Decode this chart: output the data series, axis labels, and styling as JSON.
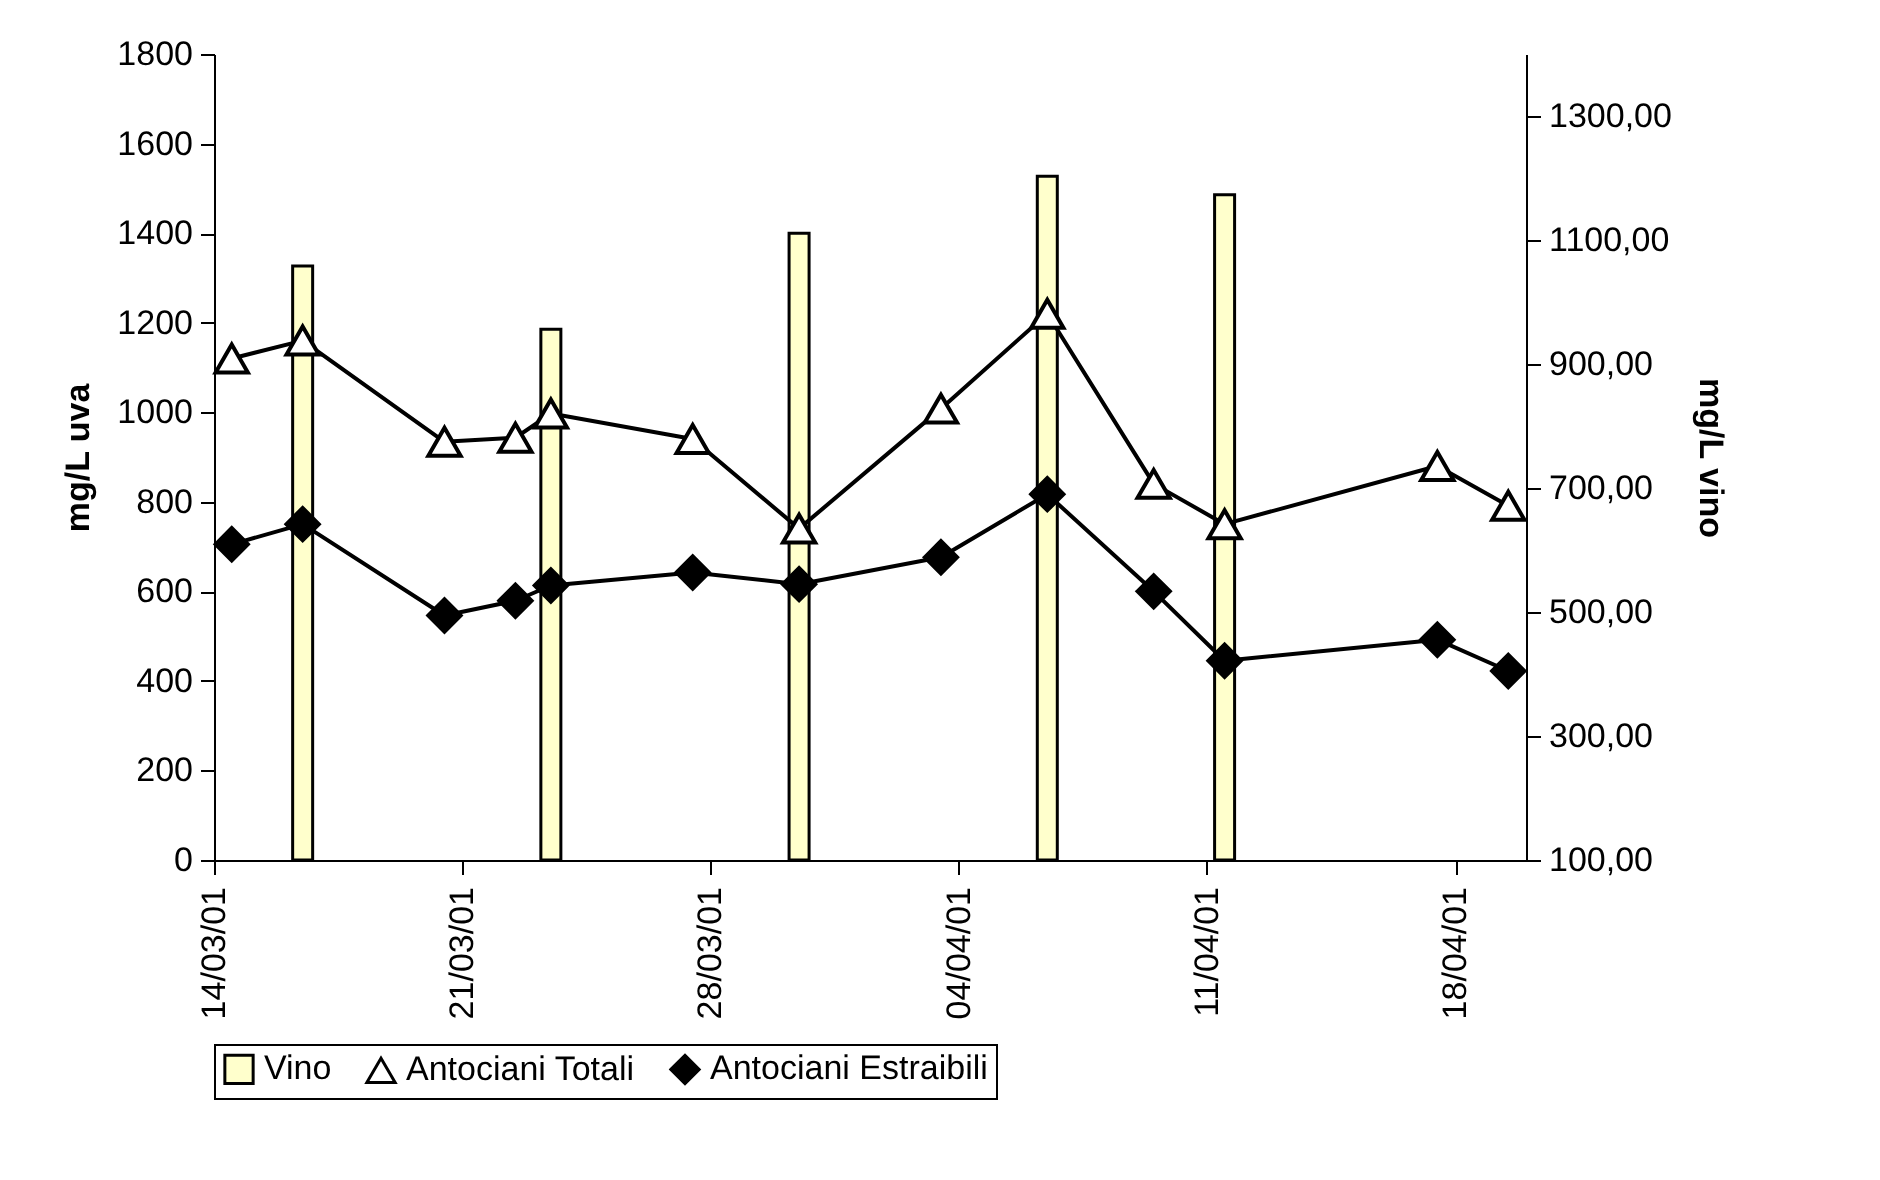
{
  "chart_data": {
    "type": "line",
    "x": [
      "--03-14T12:00",
      "--03-16T12:00",
      "--03-20T12:00",
      "--03-22T12:00",
      "--03-23T12:00",
      "--03-27T12:00",
      "--03-30T12:00",
      "--04-03T12:00",
      "--04-06T12:00",
      "--04-09T12:00",
      "--04-11T12:00",
      "--04-17T12:00",
      "--04-19T12:00"
    ],
    "xlim": [
      "--03-14",
      "--04-20"
    ],
    "xticks": [
      {
        "value": "--03-14",
        "label": "14/03/01"
      },
      {
        "value": "--03-21",
        "label": "21/03/01"
      },
      {
        "value": "--03-28",
        "label": "28/03/01"
      },
      {
        "value": "--04-04",
        "label": "04/04/01"
      },
      {
        "value": "--04-11",
        "label": "11/04/01"
      },
      {
        "value": "--04-18",
        "label": "18/04/01"
      }
    ],
    "ylabel": "mg/L uva",
    "y2label": "mg/L vino",
    "ylim": [
      0,
      1800
    ],
    "yticks": [
      0,
      200,
      400,
      600,
      800,
      1000,
      1200,
      1400,
      1600,
      1800
    ],
    "y2lim": [
      100,
      1400
    ],
    "y2ticks": [
      {
        "value": 100,
        "label": "100,00"
      },
      {
        "value": 300,
        "label": "300,00"
      },
      {
        "value": 500,
        "label": "500,00"
      },
      {
        "value": 700,
        "label": "700,00"
      },
      {
        "value": 900,
        "label": "900,00"
      },
      {
        "value": 1100,
        "label": "1100,00"
      },
      {
        "value": 1300,
        "label": "1300,00"
      }
    ],
    "legend": "bottom",
    "series": [
      {
        "name": "Vino",
        "type": "bar",
        "axis": "y2",
        "color": "#ffffcc",
        "x": [
          "--03-16T12:00",
          "--03-23T12:00",
          "--03-30T12:00",
          "--04-06T12:00",
          "--04-11T12:00"
        ],
        "values": [
          1058,
          956,
          1111,
          1203,
          1173
        ]
      },
      {
        "name": "Antociani Totali",
        "color": "#000000",
        "marker": "triangle",
        "values": [
          1120,
          1160,
          934,
          943,
          997,
          940,
          740,
          1008,
          1220,
          840,
          750,
          880,
          791
        ]
      },
      {
        "name": "Antociani Estraibili",
        "color": "#000000",
        "marker": "diamond",
        "values": [
          705,
          750,
          546,
          579,
          613,
          642,
          616,
          676,
          817,
          600,
          445,
          492,
          422
        ]
      }
    ]
  }
}
